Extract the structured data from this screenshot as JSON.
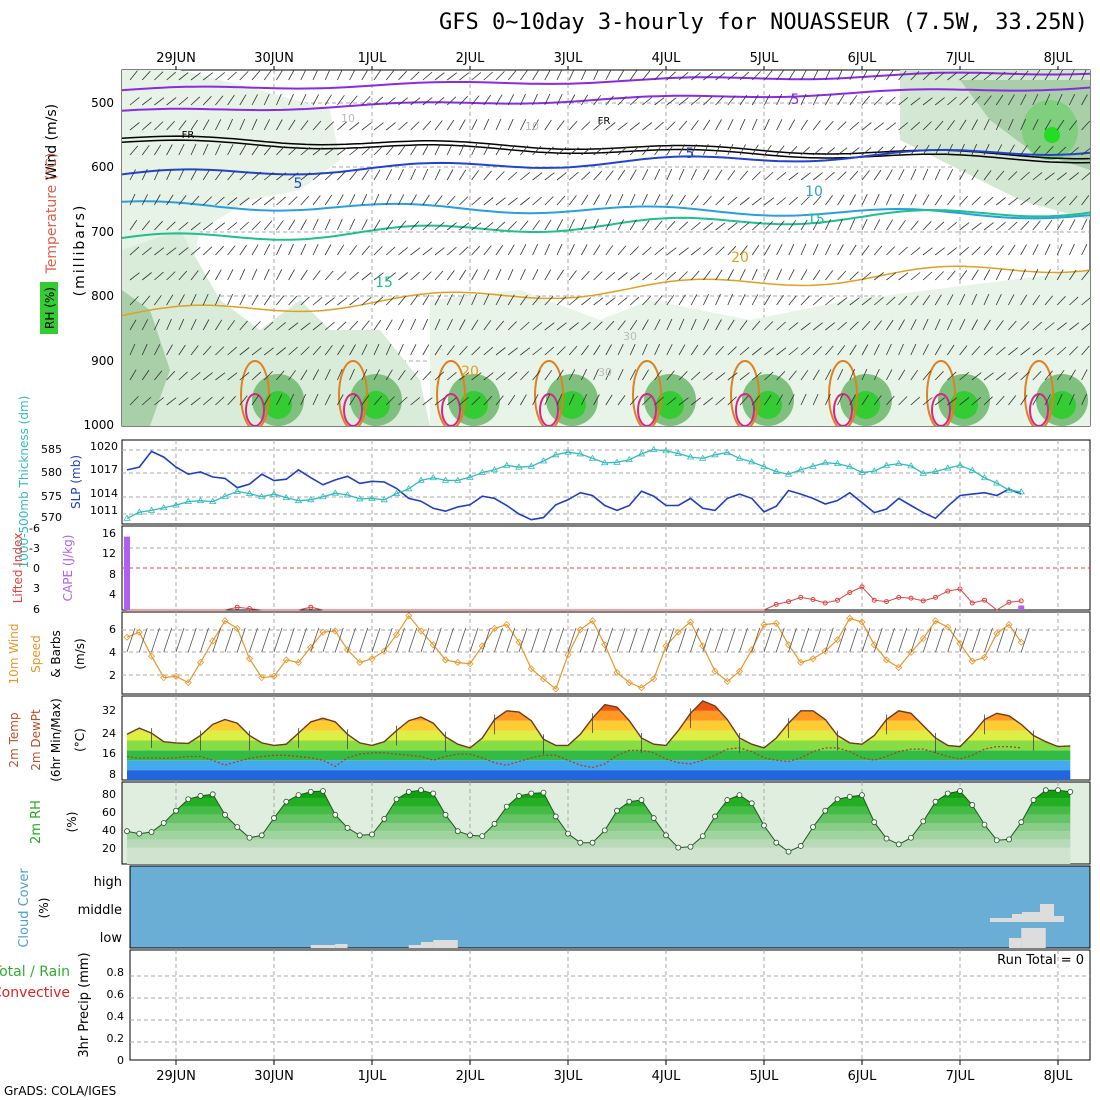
{
  "title": "GFS 0~10day 3-hourly for NOUASSEUR (7.5W, 33.25N)",
  "credit": "GrADS: COLA/IGES",
  "colors": {
    "rh_green": "#33cc33",
    "slp": "#1f3fbf",
    "thickness": "#33bbbb",
    "wind10": "#e8962a",
    "lifted": "#dd4444",
    "cape": "#b060f0",
    "cloud": "#6aaed6",
    "cloud_fill": "#dddddd"
  },
  "chart_data": [
    {
      "type": "cross-section",
      "panel": "upper-air",
      "x_labels": [
        "29JUN",
        "30JUN",
        "1JUL",
        "2JUL",
        "3JUL",
        "4JUL",
        "5JUL",
        "6JUL",
        "7JUL",
        "8JUL"
      ],
      "ylabel_parts": [
        "RH (%)",
        "Temperature (°C)",
        "Wind (m/s)"
      ],
      "ylabel_unit": "(millibars)",
      "y_ticks": [
        500,
        600,
        700,
        800,
        900,
        1000
      ],
      "ylim": [
        450,
        1000
      ],
      "contour_labels": [
        "5",
        "FR",
        "5",
        "5",
        "10",
        "15",
        "15",
        "20",
        "20",
        "30",
        "30",
        "10",
        "10"
      ]
    },
    {
      "type": "line",
      "panel": "slp-thickness",
      "ylabel_left": "1000-500mb Thickness (dm)",
      "ylabel_right": "SLP (mb)",
      "left_ticks": [
        "570",
        "575",
        "580",
        "585"
      ],
      "right_ticks": [
        "1011",
        "1014",
        "1017",
        "1020"
      ],
      "series": [
        {
          "name": "SLP",
          "axis": "right",
          "values": [
            1017.2,
            1017.6,
            1019.8,
            1019.0,
            1017.6,
            1016.6,
            1016.9,
            1016.2,
            1016.0,
            1014.7,
            1015.2,
            1016.6,
            1015.7,
            1015.9,
            1017.2,
            1016.1,
            1015.1,
            1015.8,
            1016.3,
            1015.3,
            1015.6,
            1015.5,
            1014.6,
            1013.2,
            1012.8,
            1011.8,
            1011.4,
            1012.0,
            1012.3,
            1013.5,
            1013.2,
            1012.2,
            1011.0,
            1010.2,
            1010.5,
            1012.3,
            1013.0,
            1014.0,
            1013.6,
            1012.2,
            1011.5,
            1012.2,
            1014.2,
            1013.5,
            1012.2,
            1012.2,
            1013.2,
            1011.8,
            1011.5,
            1013.2,
            1013.8,
            1013.2,
            1011.3,
            1012.1,
            1014.3,
            1013.8,
            1013.2,
            1012.4,
            1012.9,
            1014.0,
            1012.6,
            1011.2,
            1011.7,
            1013.2,
            1012.2,
            1011.2,
            1010.4,
            1012.1,
            1013.6,
            1013.8,
            1014.0,
            1013.6,
            1014.5,
            1013.8
          ]
        },
        {
          "name": "1000-500mb Thickness",
          "axis": "left",
          "values": [
            569.6,
            571.0,
            571.4,
            572.0,
            572.6,
            573.4,
            573.6,
            573.4,
            574.6,
            575.7,
            575.2,
            574.5,
            575.1,
            574.3,
            573.6,
            573.8,
            574.5,
            575.3,
            574.9,
            574.0,
            574.1,
            573.8,
            575.2,
            576.3,
            578.2,
            578.8,
            578.2,
            578.2,
            578.9,
            580.0,
            580.6,
            581.6,
            581.2,
            581.4,
            582.6,
            584.0,
            584.6,
            584.2,
            583.2,
            582.2,
            582.3,
            582.9,
            584.2,
            585.2,
            584.9,
            584.3,
            583.5,
            583.2,
            584.0,
            584.5,
            583.2,
            582.4,
            581.3,
            580.2,
            579.6,
            580.6,
            581.4,
            582.2,
            582.0,
            581.3,
            580.0,
            580.3,
            581.6,
            582.0,
            581.5,
            579.8,
            580.2,
            581.0,
            581.6,
            580.5,
            578.8,
            577.6,
            576.0,
            575.6
          ]
        }
      ]
    },
    {
      "type": "bar-line",
      "panel": "stability",
      "ylabel_left": "Lifted Index",
      "ylabel_right": "CAPE (J/kg)",
      "left_ticks": [
        "-6",
        "-3",
        "0",
        "3",
        "6"
      ],
      "right_ticks": [
        "4",
        "8",
        "12",
        "16"
      ],
      "series": [
        {
          "name": "Lifted Index",
          "values": [
            6,
            6,
            6,
            6,
            6,
            6,
            6,
            6,
            6,
            5.6,
            5.8,
            6,
            6,
            6,
            6,
            5.6,
            6,
            6,
            6,
            6,
            6,
            6,
            6,
            6,
            6,
            6,
            6,
            6,
            6,
            6,
            6,
            6,
            6,
            6,
            6,
            6,
            6,
            6,
            6,
            6,
            6,
            6,
            6,
            6,
            6,
            6,
            6,
            6,
            6,
            6,
            6,
            6,
            6,
            5.2,
            4.8,
            4.2,
            4.5,
            5.0,
            4.6,
            3.5,
            2.7,
            4.6,
            4.8,
            4.2,
            4.3,
            4.7,
            4.2,
            3.3,
            3.0,
            5.0,
            4.6,
            6,
            4.9,
            4.7
          ]
        },
        {
          "name": "CAPE",
          "values": [
            16.3,
            0,
            0,
            0,
            0,
            0,
            0,
            0,
            0,
            0,
            0,
            0,
            0,
            0,
            0,
            0,
            0,
            0,
            0,
            0,
            0,
            0,
            0,
            0,
            0,
            0,
            0,
            0,
            0,
            0,
            0,
            0,
            0,
            0,
            0,
            0,
            0,
            0,
            0,
            0,
            0,
            0,
            0,
            0,
            0,
            0,
            0,
            0,
            0,
            0,
            0,
            0,
            0,
            0,
            0,
            0,
            0,
            0,
            0,
            0,
            0,
            0,
            0,
            0,
            0,
            0,
            0,
            0,
            0,
            0,
            0,
            0,
            0,
            1.0
          ]
        }
      ]
    },
    {
      "type": "line",
      "panel": "wind10m",
      "ylabel": "10m Wind Speed & Barbs (m/s)",
      "ylabel_parts": [
        "10m Wind",
        "Speed",
        "& Barbs",
        "(m/s)"
      ],
      "y_ticks": [
        "2",
        "4",
        "6"
      ],
      "ylim": [
        0.5,
        7
      ],
      "series": [
        {
          "name": "10m Wind Speed",
          "values": [
            5.0,
            5.4,
            3.5,
            1.8,
            1.9,
            1.4,
            3.0,
            4.7,
            6.3,
            5.7,
            3.3,
            1.8,
            1.9,
            3.2,
            3.0,
            4.2,
            5.4,
            5.5,
            4.0,
            3.0,
            3.3,
            3.9,
            5.2,
            6.7,
            5.5,
            4.4,
            3.2,
            3.0,
            2.9,
            4.3,
            5.7,
            6.0,
            4.6,
            2.5,
            1.7,
            0.9,
            3.6,
            5.6,
            6.3,
            4.4,
            2.2,
            1.4,
            1.0,
            1.7,
            4.3,
            5.4,
            6.2,
            4.3,
            2.3,
            1.5,
            2.3,
            4.0,
            6.0,
            6.1,
            4.4,
            3.0,
            3.3,
            3.9,
            4.8,
            6.5,
            6.2,
            4.4,
            3.2,
            2.6,
            3.8,
            4.9,
            6.3,
            5.8,
            4.5,
            3.1,
            3.4,
            5.3,
            6.0,
            4.6
          ]
        }
      ]
    },
    {
      "type": "area",
      "panel": "temperature",
      "ylabel_parts": [
        "2m Temp",
        "2m DewPt",
        "(6hr Min/Max)",
        "(°C)"
      ],
      "y_ticks": [
        "8",
        "16",
        "24",
        "32"
      ],
      "ylim": [
        4,
        38
      ],
      "series": [
        {
          "name": "2m Temp",
          "values": [
            22.5,
            25.0,
            23.0,
            19.5,
            19.0,
            18.8,
            22.0,
            26.5,
            28.5,
            27.0,
            22.0,
            19.0,
            18.0,
            18.5,
            23.0,
            27.5,
            29.0,
            27.5,
            22.5,
            19.0,
            18.0,
            19.5,
            24.0,
            28.0,
            29.5,
            27.0,
            21.5,
            18.5,
            17.0,
            21.0,
            28.5,
            32.0,
            31.5,
            28.0,
            20.5,
            18.0,
            18.0,
            22.5,
            29.0,
            34.5,
            33.5,
            28.0,
            21.0,
            18.5,
            18.0,
            24.0,
            31.0,
            36.0,
            34.0,
            28.5,
            21.0,
            18.5,
            17.0,
            21.0,
            27.0,
            32.0,
            32.0,
            28.5,
            22.0,
            19.0,
            18.5,
            22.0,
            28.5,
            32.0,
            31.0,
            26.0,
            21.0,
            18.0,
            17.5,
            22.5,
            28.5,
            31.0,
            30.0,
            26.5,
            22.0,
            19.5,
            17.5,
            17.8
          ]
        },
        {
          "name": "2m DewPt",
          "values": [
            13.5,
            12.8,
            13.0,
            12.8,
            13.0,
            13.5,
            13.5,
            12.0,
            10.0,
            11.5,
            12.8,
            13.5,
            14.0,
            14.0,
            13.5,
            13.0,
            12.0,
            9.5,
            13.0,
            14.5,
            15.0,
            15.0,
            14.5,
            14.0,
            13.5,
            12.0,
            13.5,
            14.5,
            14.5,
            13.0,
            11.0,
            10.0,
            11.5,
            13.0,
            14.0,
            14.0,
            12.0,
            10.0,
            9.0,
            10.5,
            14.0,
            16.0,
            16.0,
            15.0,
            12.5,
            11.0,
            10.5,
            12.0,
            14.0,
            16.5,
            17.0,
            15.5,
            13.0,
            12.0,
            11.5,
            13.0,
            15.5,
            17.0,
            17.0,
            15.5,
            13.0,
            12.0,
            13.5,
            15.5,
            16.5,
            16.5,
            15.0,
            13.5,
            12.5,
            14.0,
            16.5,
            17.5,
            17.5,
            17.0
          ]
        }
      ]
    },
    {
      "type": "area",
      "panel": "rh2m",
      "ylabel_parts": [
        "2m RH",
        "(%)"
      ],
      "y_ticks": [
        "20",
        "40",
        "60",
        "80"
      ],
      "ylim": [
        0,
        100
      ],
      "series": [
        {
          "name": "2m RH",
          "values": [
            40.0,
            37.0,
            39.0,
            50.0,
            65.0,
            79.0,
            83.0,
            85.0,
            60.0,
            45.0,
            32.0,
            35.0,
            56.0,
            76.0,
            84.0,
            88.0,
            89.0,
            60.0,
            44.0,
            35.0,
            36.0,
            55.0,
            79.0,
            88.0,
            90.0,
            86.0,
            60.0,
            40.0,
            35.0,
            34.0,
            49.0,
            70.0,
            83.0,
            86.0,
            87.0,
            58.0,
            37.0,
            26.0,
            26.0,
            41.0,
            65.0,
            76.0,
            78.0,
            56.0,
            35.0,
            20.0,
            21.0,
            34.0,
            58.0,
            78.0,
            84.0,
            74.0,
            47.0,
            26.0,
            15.0,
            22.0,
            45.0,
            65.0,
            79.0,
            82.0,
            84.0,
            51.0,
            31.0,
            24.0,
            32.0,
            52.0,
            76.0,
            86.0,
            89.0,
            72.0,
            48.0,
            29.0,
            30.0,
            51.0,
            78.0,
            90.0,
            90.0,
            88.0
          ]
        }
      ]
    },
    {
      "type": "area",
      "panel": "cloud",
      "ylabel": "Cloud Cover (%)",
      "ylabel_parts": [
        "Cloud Cover",
        "(%)"
      ],
      "level_labels": [
        "high",
        "middle",
        "low"
      ],
      "series": [
        {
          "name": "low",
          "values": [
            0,
            0,
            0,
            0,
            0,
            0,
            0,
            0,
            0,
            0,
            0,
            0,
            0,
            0,
            0,
            3,
            3,
            4,
            0,
            0,
            0,
            0,
            0,
            3,
            6,
            8,
            8,
            0,
            0,
            0,
            0,
            0,
            0,
            0,
            0,
            0,
            0,
            0,
            0,
            0,
            0,
            0,
            0,
            0,
            0,
            0,
            0,
            0,
            0,
            0,
            0,
            0,
            0,
            0,
            0,
            0,
            0,
            0,
            0,
            0,
            0,
            0,
            0,
            0,
            0,
            0,
            0,
            0,
            0,
            0,
            0,
            0,
            10,
            20,
            20
          ]
        },
        {
          "name": "middle",
          "values": [
            0,
            0,
            0,
            0,
            0,
            0,
            0,
            0,
            0,
            0,
            0,
            0,
            0,
            0,
            0,
            0,
            0,
            0,
            0,
            0,
            0,
            0,
            0,
            0,
            0,
            0,
            0,
            0,
            0,
            0,
            0,
            0,
            0,
            0,
            0,
            0,
            0,
            0,
            0,
            0,
            0,
            0,
            0,
            0,
            0,
            0,
            0,
            0,
            0,
            0,
            0,
            0,
            0,
            0,
            0,
            0,
            0,
            0,
            0,
            0,
            0,
            0,
            0,
            0,
            0,
            0,
            0,
            0,
            0,
            0,
            0,
            0,
            0,
            0,
            0
          ]
        }
      ]
    },
    {
      "type": "bar",
      "panel": "precip",
      "ylabel": "3hr Precip (mm)",
      "legend_total": "Total / Rain",
      "legend_conv": "Convective",
      "y_ticks": [
        "0",
        "0.2",
        "0.4",
        "0.6",
        "0.8"
      ],
      "ylim": [
        0,
        1
      ],
      "run_total": "Run Total = 0",
      "series": [
        {
          "name": "Total",
          "values": [
            0,
            0,
            0,
            0,
            0,
            0,
            0,
            0,
            0,
            0
          ]
        }
      ]
    }
  ]
}
